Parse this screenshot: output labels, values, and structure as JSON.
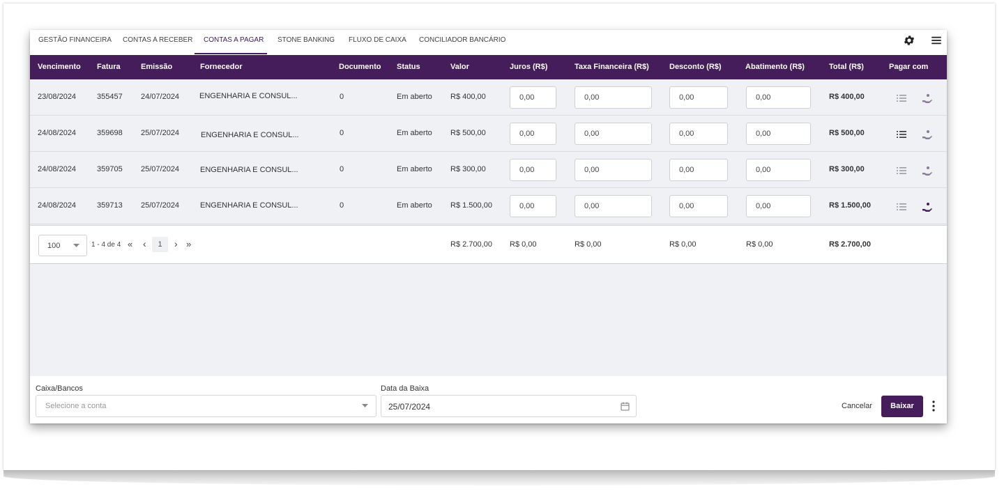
{
  "tabs": [
    {
      "label": "GESTÃO FINANCEIRA",
      "active": false
    },
    {
      "label": "CONTAS A RECEBER",
      "active": false
    },
    {
      "label": "CONTAS A PAGAR",
      "active": true
    },
    {
      "label": "STONE BANKING",
      "active": false
    },
    {
      "label": "FLUXO DE CAIXA",
      "active": false
    },
    {
      "label": "CONCILIADOR BANCÁRIO",
      "active": false
    }
  ],
  "toolbar_icons": [
    "gear-icon",
    "menu-icon"
  ],
  "columns": [
    "Vencimento",
    "Fatura",
    "Emissão",
    "Fornecedor",
    "Documento",
    "Status",
    "Valor",
    "Juros (R$)",
    "Taxa Financeira (R$)",
    "Desconto (R$)",
    "Abatimento (R$)",
    "Total (R$)",
    "Pagar com"
  ],
  "rows": [
    {
      "vencimento": "23/08/2024",
      "fatura": "355457",
      "emissao": "24/07/2024",
      "fornecedor": "ENGENHARIA E CONSUL...",
      "documento": "0",
      "status": "Em aberto",
      "valor": "R$ 400,00",
      "juros": "0,00",
      "taxa": "0,00",
      "desconto": "0,00",
      "abatimento": "0,00",
      "total": "R$ 400,00"
    },
    {
      "vencimento": "24/08/2024",
      "fatura": "359698",
      "emissao": "25/07/2024",
      "fornecedor": "ENGENHARIA E CONSUL...",
      "documento": "0",
      "status": "Em aberto",
      "valor": "R$ 500,00",
      "juros": "0,00",
      "taxa": "0,00",
      "desconto": "0,00",
      "abatimento": "0,00",
      "total": "R$ 500,00"
    },
    {
      "vencimento": "24/08/2024",
      "fatura": "359705",
      "emissao": "25/07/2024",
      "fornecedor": "ENGENHARIA E CONSUL...",
      "documento": "0",
      "status": "Em aberto",
      "valor": "R$ 300,00",
      "juros": "0,00",
      "taxa": "0,00",
      "desconto": "0,00",
      "abatimento": "0,00",
      "total": "R$ 300,00"
    },
    {
      "vencimento": "24/08/2024",
      "fatura": "359713",
      "emissao": "25/07/2024",
      "fornecedor": "ENGENHARIA E CONSUL...",
      "documento": "0",
      "status": "Em aberto",
      "valor": "R$ 1.500,00",
      "juros": "0,00",
      "taxa": "0,00",
      "desconto": "0,00",
      "abatimento": "0,00",
      "total": "R$ 1.500,00"
    }
  ],
  "row_icons": [
    "list-icon",
    "hand-coin-icon"
  ],
  "pagination": {
    "page_size": "100",
    "range": "1 - 4 de 4",
    "first": "«",
    "prev": "‹",
    "current": "1",
    "next": "›",
    "last": "»"
  },
  "totals": {
    "valor": "R$ 2.700,00",
    "juros": "R$ 0,00",
    "taxa": "R$ 0,00",
    "desconto": "R$ 0,00",
    "abatimento": "R$ 0,00",
    "total": "R$ 2.700,00"
  },
  "action_bar": {
    "caixa_label": "Caixa/Bancos",
    "caixa_placeholder": "Selecione a conta",
    "data_label": "Data da Baixa",
    "data_value": "25/07/2024",
    "cancel_label": "Cancelar",
    "submit_label": "Baixar"
  },
  "colors": {
    "header_bg": "#451d5b",
    "accent": "#451d5b",
    "row_bg": "#f0f1f5"
  }
}
